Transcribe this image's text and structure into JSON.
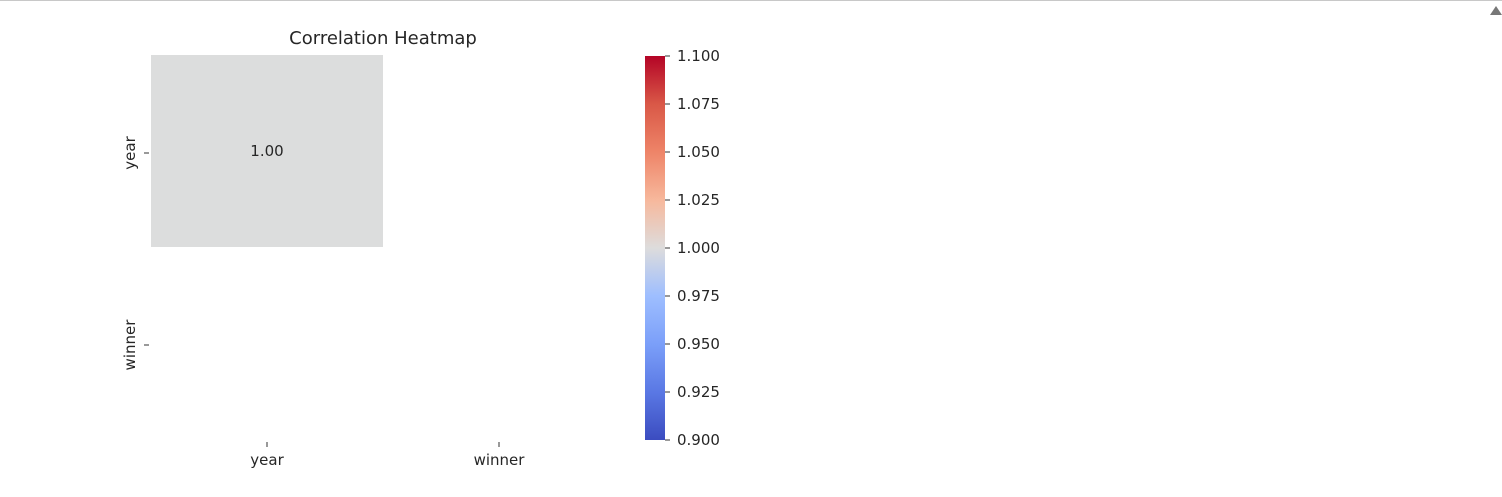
{
  "chart_data": {
    "type": "heatmap",
    "title": "Correlation Heatmap",
    "x_categories": [
      "year",
      "winner"
    ],
    "y_categories": [
      "year",
      "winner"
    ],
    "cells": [
      {
        "row": 0,
        "col": 0,
        "value": 1.0,
        "label": "1.00"
      }
    ],
    "colormap": "coolwarm",
    "colorbar": {
      "min": 0.9,
      "max": 1.1,
      "ticks": [
        {
          "value": 1.1,
          "label": "1.100"
        },
        {
          "value": 1.075,
          "label": "1.075"
        },
        {
          "value": 1.05,
          "label": "1.050"
        },
        {
          "value": 1.025,
          "label": "1.025"
        },
        {
          "value": 1.0,
          "label": "1.000"
        },
        {
          "value": 0.975,
          "label": "0.975"
        },
        {
          "value": 0.95,
          "label": "0.950"
        },
        {
          "value": 0.925,
          "label": "0.925"
        },
        {
          "value": 0.9,
          "label": "0.900"
        }
      ]
    },
    "grid": false
  },
  "colors": {
    "cell_neutral": "#dcdddd",
    "colormap_top": "#b40426",
    "colormap_mid": "#dddcdc",
    "colormap_bottom": "#3b4cc0"
  }
}
